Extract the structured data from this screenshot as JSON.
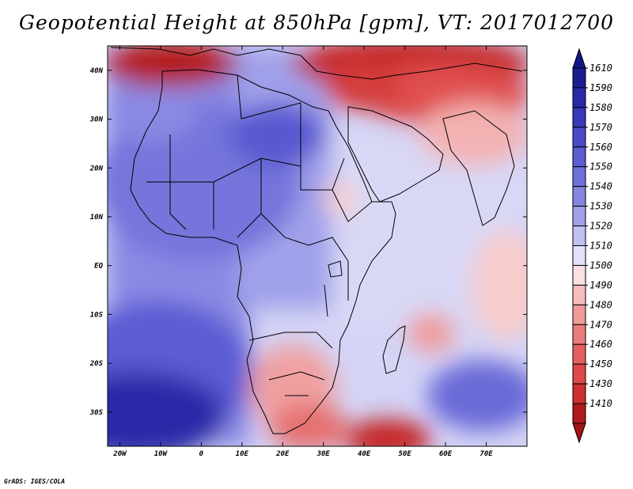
{
  "title": "Geopotential Height at 850hPa [gpm], VT: 2017012700",
  "credit": "GrADS: IGES/COLA",
  "map": {
    "lon_range": [
      -23,
      80
    ],
    "lat_range": [
      -37,
      45
    ],
    "lat_ticks": [
      {
        "value": 40,
        "label": "40N"
      },
      {
        "value": 30,
        "label": "30N"
      },
      {
        "value": 20,
        "label": "20N"
      },
      {
        "value": 10,
        "label": "10N"
      },
      {
        "value": 0,
        "label": "EQ"
      },
      {
        "value": -10,
        "label": "10S"
      },
      {
        "value": -20,
        "label": "20S"
      },
      {
        "value": -30,
        "label": "30S"
      }
    ],
    "lon_ticks": [
      {
        "value": -20,
        "label": "20W"
      },
      {
        "value": -10,
        "label": "10W"
      },
      {
        "value": 0,
        "label": "0"
      },
      {
        "value": 10,
        "label": "10E"
      },
      {
        "value": 20,
        "label": "20E"
      },
      {
        "value": 30,
        "label": "30E"
      },
      {
        "value": 40,
        "label": "40E"
      },
      {
        "value": 50,
        "label": "50E"
      },
      {
        "value": 60,
        "label": "60E"
      },
      {
        "value": 70,
        "label": "70E"
      }
    ]
  },
  "colorbar": {
    "levels": [
      {
        "label": "1610",
        "color": "#1c1c92"
      },
      {
        "label": "1590",
        "color": "#2828a8"
      },
      {
        "label": "1580",
        "color": "#3838ba"
      },
      {
        "label": "1570",
        "color": "#4a4ac8"
      },
      {
        "label": "1560",
        "color": "#5c5cd4"
      },
      {
        "label": "1550",
        "color": "#7070dc"
      },
      {
        "label": "1540",
        "color": "#8686e2"
      },
      {
        "label": "1530",
        "color": "#a0a0ea"
      },
      {
        "label": "1520",
        "color": "#c0c0f2"
      },
      {
        "label": "1510",
        "color": "#e2e2fa"
      },
      {
        "label": "1500",
        "color": "#fae0e0"
      },
      {
        "label": "1490",
        "color": "#f6bcbc"
      },
      {
        "label": "1480",
        "color": "#f09a9a"
      },
      {
        "label": "1470",
        "color": "#ea7c7c"
      },
      {
        "label": "1460",
        "color": "#e46060"
      },
      {
        "label": "1450",
        "color": "#de4848"
      },
      {
        "label": "1430",
        "color": "#cc3030"
      },
      {
        "label": "1410",
        "color": "#b01a1a"
      }
    ],
    "top_color": "#14148a",
    "bottom_color": "#a01414"
  },
  "field_features": [
    {
      "name": "low-europe-northwest",
      "lon": -12,
      "lat": 44,
      "value": 1410
    },
    {
      "name": "low-near-east",
      "lon": 45,
      "lat": 40,
      "value": 1430
    },
    {
      "name": "low-iran",
      "lon": 58,
      "lat": 36,
      "value": 1450
    },
    {
      "name": "high-sahara",
      "lon": 12,
      "lat": 27,
      "value": 1570
    },
    {
      "name": "high-west-africa",
      "lon": -10,
      "lat": 18,
      "value": 1550
    },
    {
      "name": "high-south-atlantic",
      "lon": -12,
      "lat": -30,
      "value": 1610
    },
    {
      "name": "high-indian-ocean",
      "lon": 63,
      "lat": -29,
      "value": 1570
    },
    {
      "name": "low-mozambique-channel",
      "lon": 44,
      "lat": -36,
      "value": 1410
    },
    {
      "name": "low-south-africa",
      "lon": 24,
      "lat": -26,
      "value": 1480
    },
    {
      "name": "low-madagascar-east",
      "lon": 58,
      "lat": -13,
      "value": 1480
    }
  ]
}
